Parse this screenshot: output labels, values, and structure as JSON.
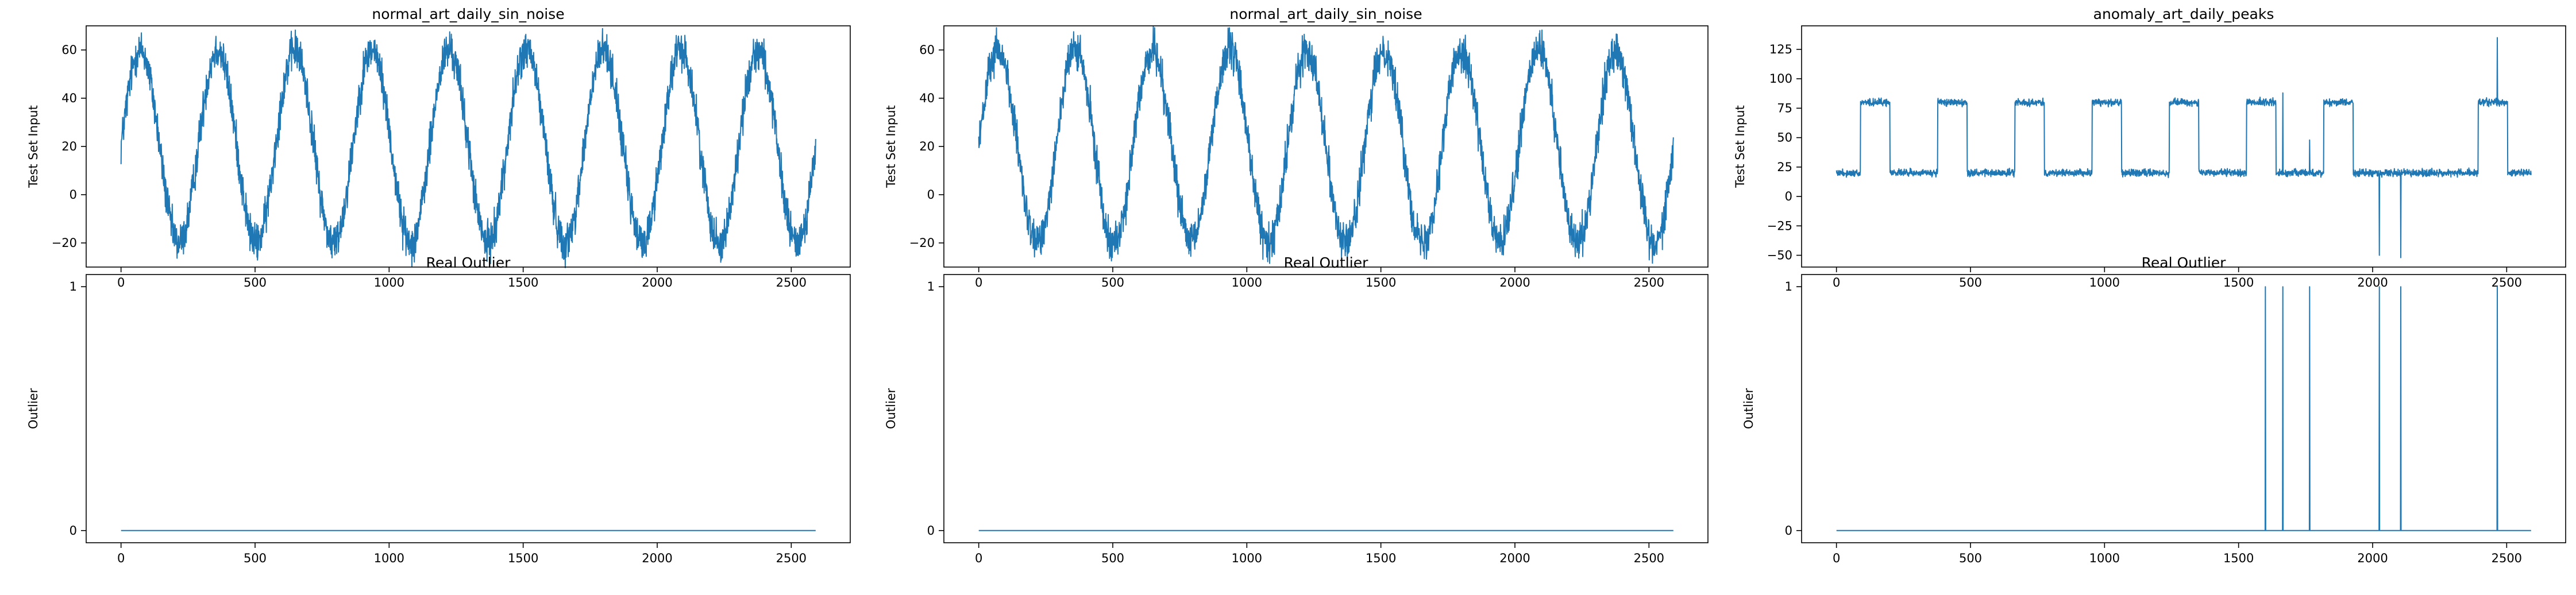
{
  "colors": {
    "line": "#1f77b4",
    "axes": "#000000",
    "background": "#ffffff"
  },
  "chart_data": [
    {
      "type": "line",
      "title": "normal_art_daily_sin_noise",
      "ylabel": "Test Set Input",
      "xlabel": "",
      "xlim": [
        -130,
        2720
      ],
      "ylim": [
        -30,
        70
      ],
      "xticks": [
        0,
        500,
        1000,
        1500,
        2000,
        2500
      ],
      "xtick_labels": [
        "0",
        "500",
        "1000",
        "1500",
        "2000",
        "2500"
      ],
      "yticks": [
        -20,
        0,
        20,
        40,
        60
      ],
      "ytick_labels": [
        "−20",
        "0",
        "20",
        "40",
        "60"
      ],
      "series": [
        {
          "kind": "sine",
          "n": 2592,
          "phase0": 20,
          "mean": 20,
          "amplitude": 40,
          "period": 288,
          "noise": 8
        }
      ]
    },
    {
      "type": "line",
      "title": "normal_art_daily_sin_noise",
      "ylabel": "Test Set Input",
      "xlabel": "",
      "xlim": [
        -130,
        2720
      ],
      "ylim": [
        -30,
        70
      ],
      "xticks": [
        0,
        500,
        1000,
        1500,
        2000,
        2500
      ],
      "xtick_labels": [
        "0",
        "500",
        "1000",
        "1500",
        "2000",
        "2500"
      ],
      "yticks": [
        -20,
        0,
        20,
        40,
        60
      ],
      "ytick_labels": [
        "−20",
        "0",
        "20",
        "40",
        "60"
      ],
      "series": [
        {
          "kind": "sine",
          "n": 2592,
          "phase0": 20,
          "mean": 20,
          "amplitude": 40,
          "period": 288,
          "noise": 8
        }
      ]
    },
    {
      "type": "line",
      "title": "anomaly_art_daily_peaks",
      "ylabel": "Test Set Input",
      "xlabel": "",
      "xlim": [
        -130,
        2720
      ],
      "ylim": [
        -60,
        145
      ],
      "xticks": [
        0,
        500,
        1000,
        1500,
        2000,
        2500
      ],
      "xtick_labels": [
        "0",
        "500",
        "1000",
        "1500",
        "2000",
        "2500"
      ],
      "yticks": [
        -50,
        -25,
        0,
        25,
        50,
        75,
        100,
        125
      ],
      "ytick_labels": [
        "−50",
        "−25",
        "0",
        "25",
        "50",
        "75",
        "100",
        "125"
      ],
      "series": [
        {
          "kind": "square",
          "n": 2592,
          "low": 20,
          "high": 80,
          "period": 288,
          "rise_offset": 90,
          "high_length": 110,
          "noise": 3,
          "spikes": [
            {
              "x": 1665,
              "y": 88
            },
            {
              "x": 1765,
              "y": 48
            },
            {
              "x": 2025,
              "y": -50
            },
            {
              "x": 2105,
              "y": -52
            },
            {
              "x": 2465,
              "y": 135
            }
          ],
          "flat_days": [
            7
          ]
        }
      ]
    },
    {
      "type": "line",
      "title": "Real Outlier",
      "ylabel": "Outlier",
      "xlabel": "",
      "xlim": [
        -130,
        2720
      ],
      "ylim": [
        -0.05,
        1.05
      ],
      "xticks": [
        0,
        500,
        1000,
        1500,
        2000,
        2500
      ],
      "xtick_labels": [
        "0",
        "500",
        "1000",
        "1500",
        "2000",
        "2500"
      ],
      "yticks": [
        0,
        1
      ],
      "ytick_labels": [
        "0",
        "1"
      ],
      "series": [
        {
          "kind": "binary",
          "n": 2592,
          "ones": []
        }
      ]
    },
    {
      "type": "line",
      "title": "Real Outlier",
      "ylabel": "Outlier",
      "xlabel": "",
      "xlim": [
        -130,
        2720
      ],
      "ylim": [
        -0.05,
        1.05
      ],
      "xticks": [
        0,
        500,
        1000,
        1500,
        2000,
        2500
      ],
      "xtick_labels": [
        "0",
        "500",
        "1000",
        "1500",
        "2000",
        "2500"
      ],
      "yticks": [
        0,
        1
      ],
      "ytick_labels": [
        "0",
        "1"
      ],
      "series": [
        {
          "kind": "binary",
          "n": 2592,
          "ones": []
        }
      ]
    },
    {
      "type": "line",
      "title": "Real Outlier",
      "ylabel": "Outlier",
      "xlabel": "",
      "xlim": [
        -130,
        2720
      ],
      "ylim": [
        -0.05,
        1.05
      ],
      "xticks": [
        0,
        500,
        1000,
        1500,
        2000,
        2500
      ],
      "xtick_labels": [
        "0",
        "500",
        "1000",
        "1500",
        "2000",
        "2500"
      ],
      "yticks": [
        0,
        1
      ],
      "ytick_labels": [
        "0",
        "1"
      ],
      "series": [
        {
          "kind": "binary",
          "n": 2592,
          "ones": [
            1600,
            1665,
            1765,
            2025,
            2105,
            2465
          ]
        }
      ]
    }
  ]
}
